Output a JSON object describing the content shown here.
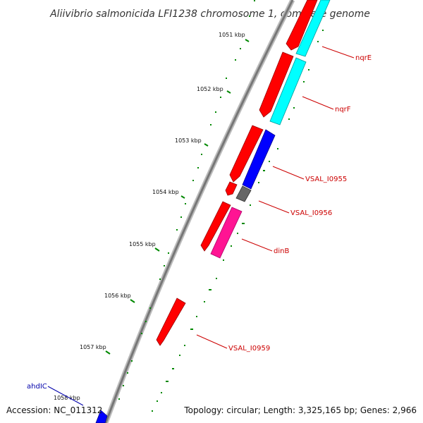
{
  "title": "Aliivibrio salmonicida LFI1238 chromosome 1, complete genome",
  "footer": {
    "accession": "Accession: NC_011312",
    "summary": "Topology: circular; Length: 3,325,165 bp; Genes: 2,966"
  },
  "ticks": [
    {
      "label": "1051 kbp"
    },
    {
      "label": "1052 kbp"
    },
    {
      "label": "1053 kbp"
    },
    {
      "label": "1054 kbp"
    },
    {
      "label": "1055 kbp"
    },
    {
      "label": "1056 kbp"
    },
    {
      "label": "1057 kbp"
    },
    {
      "label": "1058 kbp"
    }
  ],
  "genes": [
    {
      "label": "nqrE",
      "color": "#cc0000"
    },
    {
      "label": "nqrF",
      "color": "#cc0000"
    },
    {
      "label": "VSAL_I0955",
      "color": "#cc0000"
    },
    {
      "label": "VSAL_I0956",
      "color": "#cc0000"
    },
    {
      "label": "dinB",
      "color": "#cc0000"
    },
    {
      "label": "VSAL_I0959",
      "color": "#cc0000"
    },
    {
      "label": "ahdIC",
      "color": "#0000aa"
    }
  ],
  "colors": {
    "forward_cds": "#ff0000",
    "reverse_cds": "#00ffff",
    "blue_cds": "#0000ff",
    "gray_cds": "#666666",
    "pink_cds": "#ff1493",
    "backbone": "#888888",
    "gc_dots": "#008800"
  }
}
